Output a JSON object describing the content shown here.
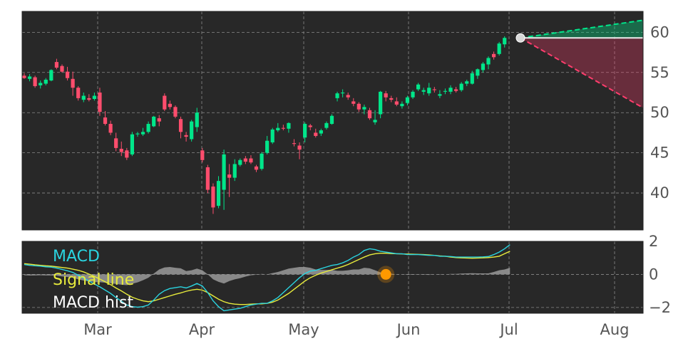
{
  "chart_data": [
    {
      "type": "candlestick",
      "panel": "price",
      "y_ticks": [
        40,
        45,
        50,
        55,
        60
      ],
      "ylim": [
        35.4,
        62.6
      ],
      "grid": true,
      "colors": {
        "up": "#00e68a",
        "down": "#ff4d6d",
        "background": "#282828",
        "grid": "#8a8a8a"
      },
      "candles": [
        [
          54.6,
          54.9,
          54.2,
          54.3
        ],
        [
          54.2,
          54.8,
          53.9,
          54.5
        ],
        [
          54.4,
          54.6,
          53.1,
          53.3
        ],
        [
          53.4,
          54.0,
          53.0,
          53.7
        ],
        [
          53.6,
          54.3,
          53.4,
          54.1
        ],
        [
          54.0,
          55.4,
          53.9,
          55.3
        ],
        [
          56.3,
          56.7,
          55.4,
          55.6
        ],
        [
          55.8,
          56.0,
          55.0,
          55.1
        ],
        [
          55.1,
          55.7,
          54.0,
          54.3
        ],
        [
          54.2,
          55.1,
          52.1,
          53.1
        ],
        [
          53.1,
          53.3,
          51.5,
          51.8
        ],
        [
          51.6,
          52.5,
          51.3,
          52.1
        ],
        [
          51.8,
          52.3,
          51.4,
          51.6
        ],
        [
          51.7,
          52.5,
          51.5,
          52.1
        ],
        [
          52.5,
          53.1,
          49.6,
          50.1
        ],
        [
          49.4,
          50.2,
          48.4,
          48.6
        ],
        [
          48.6,
          49.0,
          47.2,
          47.5
        ],
        [
          46.8,
          47.5,
          45.2,
          45.6
        ],
        [
          45.5,
          46.4,
          44.6,
          45.1
        ],
        [
          45.3,
          45.6,
          44.1,
          44.4
        ],
        [
          44.8,
          47.6,
          44.6,
          47.3
        ],
        [
          47.3,
          47.6,
          47.0,
          47.4
        ],
        [
          47.3,
          48.1,
          47.1,
          47.6
        ],
        [
          47.6,
          48.9,
          47.4,
          48.6
        ],
        [
          48.3,
          49.6,
          48.2,
          49.5
        ],
        [
          49.3,
          49.7,
          48.3,
          48.9
        ],
        [
          52.1,
          52.4,
          50.2,
          50.4
        ],
        [
          51.1,
          51.5,
          50.4,
          50.7
        ],
        [
          50.7,
          50.9,
          49.3,
          49.5
        ],
        [
          49.2,
          49.5,
          46.8,
          47.6
        ],
        [
          47.2,
          47.6,
          46.4,
          47.0
        ],
        [
          46.7,
          49.1,
          46.4,
          48.9
        ],
        [
          48.2,
          50.6,
          47.6,
          50.0
        ],
        [
          45.3,
          45.6,
          43.8,
          44.1
        ],
        [
          43.2,
          43.5,
          40.0,
          40.4
        ],
        [
          40.8,
          41.2,
          37.4,
          38.2
        ],
        [
          38.4,
          42.1,
          38.1,
          41.5
        ],
        [
          40.4,
          45.4,
          37.9,
          44.8
        ],
        [
          42.3,
          43.6,
          39.5,
          41.9
        ],
        [
          41.9,
          44.2,
          41.5,
          43.6
        ],
        [
          43.5,
          44.3,
          43.3,
          44.1
        ],
        [
          44.3,
          44.6,
          43.6,
          43.9
        ],
        [
          44.3,
          44.7,
          43.6,
          43.8
        ],
        [
          43.3,
          43.5,
          42.6,
          42.9
        ],
        [
          43.0,
          45.1,
          42.8,
          44.9
        ],
        [
          45.0,
          47.1,
          44.8,
          46.5
        ],
        [
          46.3,
          48.1,
          46.1,
          47.9
        ],
        [
          47.8,
          48.7,
          47.6,
          48.1
        ],
        [
          48.1,
          48.5,
          47.8,
          48.0
        ],
        [
          48.0,
          48.8,
          47.5,
          48.7
        ],
        [
          46.2,
          46.7,
          45.8,
          46.1
        ],
        [
          45.9,
          46.3,
          44.2,
          45.4
        ],
        [
          46.9,
          48.8,
          46.3,
          48.6
        ],
        [
          48.4,
          48.6,
          47.8,
          48.2
        ],
        [
          47.5,
          48.0,
          46.9,
          47.1
        ],
        [
          47.4,
          48.0,
          47.1,
          47.8
        ],
        [
          48.1,
          48.9,
          47.9,
          48.7
        ],
        [
          48.6,
          49.8,
          48.5,
          49.6
        ],
        [
          51.8,
          52.6,
          51.4,
          52.4
        ],
        [
          52.4,
          52.9,
          51.9,
          52.5
        ],
        [
          52.2,
          52.5,
          51.6,
          51.9
        ],
        [
          51.4,
          51.8,
          50.8,
          51.1
        ],
        [
          51.1,
          51.3,
          50.1,
          50.4
        ],
        [
          50.4,
          51.0,
          49.8,
          50.7
        ],
        [
          50.3,
          50.6,
          49.1,
          49.3
        ],
        [
          48.8,
          50.3,
          48.5,
          49.1
        ],
        [
          49.8,
          52.7,
          49.3,
          52.6
        ],
        [
          52.4,
          52.7,
          51.4,
          51.9
        ],
        [
          51.8,
          52.1,
          51.3,
          51.6
        ],
        [
          51.4,
          51.9,
          50.8,
          51.0
        ],
        [
          50.8,
          51.4,
          50.5,
          51.1
        ],
        [
          51.2,
          52.1,
          50.9,
          51.9
        ],
        [
          51.9,
          52.8,
          51.7,
          52.6
        ],
        [
          52.9,
          53.7,
          52.7,
          53.5
        ],
        [
          52.6,
          53.1,
          52.2,
          52.8
        ],
        [
          52.4,
          53.7,
          52.1,
          53.1
        ],
        [
          52.9,
          53.2,
          52.5,
          52.8
        ],
        [
          52.1,
          52.8,
          51.8,
          52.3
        ],
        [
          52.6,
          53.0,
          52.3,
          52.7
        ],
        [
          52.6,
          53.4,
          52.3,
          53.1
        ],
        [
          52.9,
          53.2,
          52.5,
          52.7
        ],
        [
          52.8,
          53.8,
          52.6,
          53.6
        ],
        [
          53.6,
          54.1,
          53.3,
          53.9
        ],
        [
          53.6,
          55.2,
          53.5,
          54.9
        ],
        [
          54.6,
          55.5,
          54.2,
          55.4
        ],
        [
          55.3,
          56.3,
          55.0,
          56.1
        ],
        [
          56.0,
          57.0,
          55.4,
          56.8
        ],
        [
          57.3,
          57.6,
          56.6,
          56.9
        ],
        [
          57.3,
          58.8,
          57.1,
          58.6
        ],
        [
          58.5,
          59.5,
          58.1,
          59.3
        ]
      ],
      "projection": {
        "last_close": 59.3,
        "upper_end": 61.5,
        "lower_end": 50.6,
        "colors": {
          "upper": "#00e68a",
          "lower": "#ff3d6d",
          "dot": "#d8d8d8"
        }
      }
    },
    {
      "type": "line",
      "panel": "macd",
      "y_ticks": [
        -2,
        0,
        2
      ],
      "y_tick_labels": [
        "−2",
        "0",
        "2"
      ],
      "ylim": [
        -2.35,
        2.0
      ],
      "grid": true,
      "legend_position": "top-left",
      "series": [
        {
          "name": "MACD",
          "color": "#2ad4e0",
          "values": [
            0.6,
            0.55,
            0.52,
            0.5,
            0.46,
            0.44,
            0.38,
            0.3,
            0.22,
            0.12,
            -0.05,
            -0.22,
            -0.4,
            -0.58,
            -0.75,
            -0.95,
            -1.15,
            -1.4,
            -1.62,
            -1.85,
            -1.95,
            -1.98,
            -1.95,
            -1.85,
            -1.55,
            -1.2,
            -0.98,
            -0.85,
            -0.8,
            -0.75,
            -0.82,
            -0.7,
            -0.55,
            -0.7,
            -1.1,
            -1.6,
            -1.95,
            -2.2,
            -2.15,
            -2.1,
            -2.05,
            -1.95,
            -1.85,
            -1.8,
            -1.75,
            -1.75,
            -1.6,
            -1.4,
            -1.1,
            -0.8,
            -0.5,
            -0.2,
            0.05,
            0.2,
            0.25,
            0.35,
            0.45,
            0.55,
            0.6,
            0.7,
            0.85,
            1.05,
            1.2,
            1.45,
            1.55,
            1.5,
            1.4,
            1.35,
            1.3,
            1.25,
            1.25,
            1.2,
            1.2,
            1.2,
            1.18,
            1.15,
            1.15,
            1.1,
            1.1,
            1.08,
            1.05,
            1.05,
            1.05,
            1.05,
            1.05,
            1.06,
            1.08,
            1.2,
            1.35,
            1.55,
            1.8
          ]
        },
        {
          "name": "Signal line",
          "color": "#e8ec3c",
          "values": [
            0.65,
            0.62,
            0.58,
            0.55,
            0.52,
            0.5,
            0.46,
            0.42,
            0.38,
            0.32,
            0.25,
            0.15,
            0.02,
            -0.12,
            -0.28,
            -0.45,
            -0.62,
            -0.82,
            -1.0,
            -1.2,
            -1.38,
            -1.5,
            -1.6,
            -1.65,
            -1.6,
            -1.5,
            -1.4,
            -1.3,
            -1.2,
            -1.12,
            -1.02,
            -0.95,
            -0.9,
            -0.95,
            -1.1,
            -1.3,
            -1.5,
            -1.65,
            -1.75,
            -1.8,
            -1.82,
            -1.82,
            -1.8,
            -1.78,
            -1.78,
            -1.75,
            -1.68,
            -1.55,
            -1.35,
            -1.15,
            -0.9,
            -0.65,
            -0.4,
            -0.2,
            -0.05,
            0.08,
            0.18,
            0.28,
            0.38,
            0.48,
            0.6,
            0.75,
            0.9,
            1.05,
            1.18,
            1.25,
            1.28,
            1.28,
            1.26,
            1.25,
            1.24,
            1.23,
            1.22,
            1.21,
            1.2,
            1.18,
            1.15,
            1.12,
            1.1,
            1.05,
            1.02,
            1.0,
            0.99,
            0.98,
            0.99,
            1.0,
            1.02,
            1.05,
            1.1,
            1.25,
            1.4
          ]
        },
        {
          "name": "MACD hist",
          "type": "area",
          "color": "#9a9a9a",
          "values": [
            -0.05,
            -0.07,
            -0.06,
            -0.05,
            -0.06,
            -0.06,
            -0.08,
            -0.12,
            -0.16,
            -0.2,
            -0.3,
            -0.37,
            -0.42,
            -0.46,
            -0.47,
            -0.5,
            -0.53,
            -0.58,
            -0.62,
            -0.65,
            -0.57,
            -0.48,
            -0.35,
            -0.2,
            0.05,
            0.3,
            0.42,
            0.45,
            0.4,
            0.37,
            0.2,
            0.25,
            0.35,
            0.25,
            0.0,
            -0.3,
            -0.45,
            -0.55,
            -0.4,
            -0.3,
            -0.23,
            -0.13,
            -0.05,
            -0.02,
            0.03,
            0.0,
            0.08,
            0.15,
            0.25,
            0.35,
            0.4,
            0.45,
            0.45,
            0.4,
            0.3,
            0.27,
            0.27,
            0.27,
            0.22,
            0.22,
            0.25,
            0.3,
            0.3,
            0.4,
            0.37,
            0.25,
            0.12,
            0.07,
            0.04,
            0.0,
            0.01,
            -0.03,
            -0.02,
            -0.01,
            -0.02,
            -0.03,
            0.0,
            -0.02,
            0.0,
            0.03,
            0.03,
            0.05,
            0.06,
            0.07,
            0.06,
            0.06,
            0.06,
            0.15,
            0.25,
            0.3,
            0.4
          ]
        }
      ],
      "marker": {
        "index": 67,
        "value": 0.0,
        "color": "#ff9900"
      }
    }
  ],
  "x_axis": {
    "labels": [
      "Mar",
      "Apr",
      "May",
      "Jun",
      "Jul",
      "Aug"
    ]
  }
}
